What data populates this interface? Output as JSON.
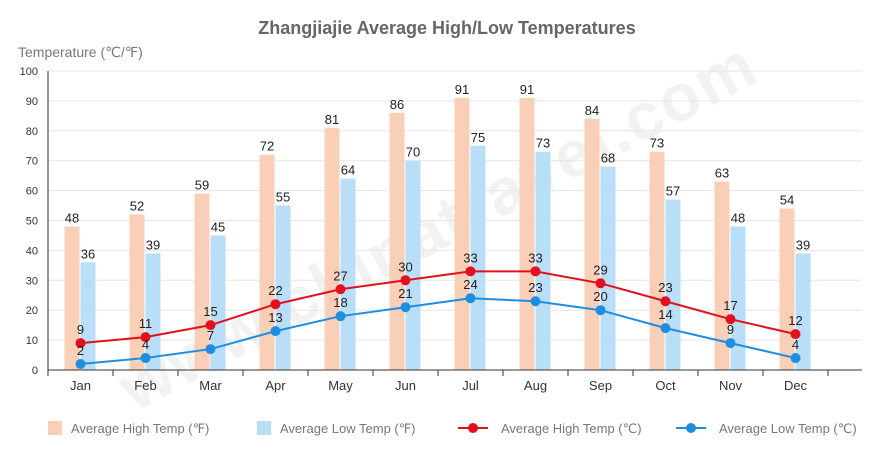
{
  "chart_data": {
    "type": "bar",
    "title": "Zhangjiajie Average High/Low Temperatures",
    "ylabel": "Temperature (℃/℉)",
    "ylim": [
      0,
      100
    ],
    "yticks": [
      0,
      10,
      20,
      30,
      40,
      50,
      60,
      70,
      80,
      90,
      100
    ],
    "grid": true,
    "legend_position": "bottom",
    "watermark": "www.chinatravel.com",
    "categories": [
      "Jan",
      "Feb",
      "Mar",
      "Apr",
      "May",
      "Jun",
      "Jul",
      "Aug",
      "Sep",
      "Oct",
      "Nov",
      "Dec"
    ],
    "series": [
      {
        "name": "Average High Temp (℉)",
        "kind": "bar",
        "color": "#f9cfb8",
        "values": [
          48,
          52,
          59,
          72,
          81,
          86,
          91,
          91,
          84,
          73,
          63,
          54
        ]
      },
      {
        "name": "Average Low Temp (℉)",
        "kind": "bar",
        "color": "#b9def7",
        "values": [
          36,
          39,
          45,
          55,
          64,
          70,
          75,
          73,
          68,
          57,
          48,
          39
        ]
      },
      {
        "name": "Average High Temp (℃)",
        "kind": "line",
        "color": "#e2101e",
        "values": [
          9,
          11,
          15,
          22,
          27,
          30,
          33,
          33,
          29,
          23,
          17,
          12
        ]
      },
      {
        "name": "Average Low Temp (℃)",
        "kind": "line",
        "color": "#1f8ee0",
        "values": [
          2,
          4,
          7,
          13,
          18,
          21,
          24,
          23,
          20,
          14,
          9,
          4
        ]
      }
    ]
  }
}
